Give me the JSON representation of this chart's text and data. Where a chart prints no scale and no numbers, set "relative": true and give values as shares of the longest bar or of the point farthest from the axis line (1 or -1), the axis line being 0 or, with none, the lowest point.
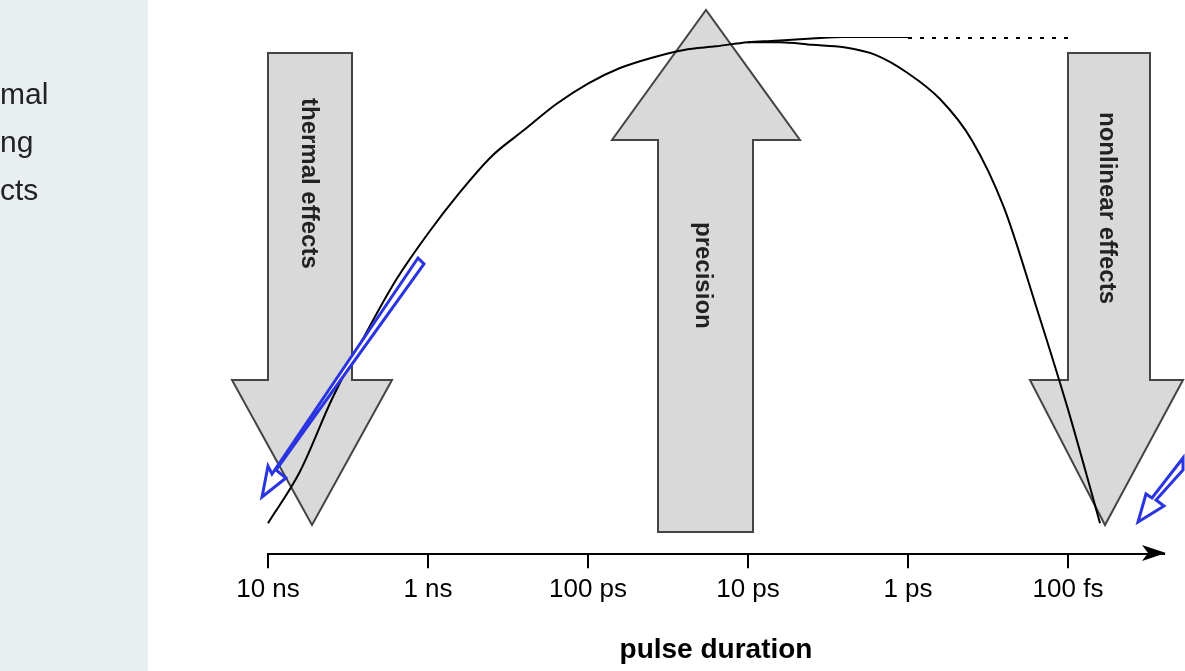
{
  "chart_data": {
    "type": "line",
    "relative": true,
    "xlabel": "pulse duration",
    "categories": [
      "10 ns",
      null,
      null,
      null,
      null,
      "1 ns",
      null,
      null,
      null,
      null,
      "100 ps",
      null,
      null,
      null,
      null,
      "10 ps",
      null,
      null,
      null,
      null,
      "1 ps",
      null,
      null,
      null,
      null,
      "100 fs",
      null,
      null,
      null
    ],
    "series": [
      {
        "color": "#000000",
        "line_style": "solid",
        "values": [
          0.06,
          0.16,
          0.3,
          0.42,
          0.53,
          0.62,
          0.7,
          0.77,
          0.82,
          0.87,
          0.91,
          0.94,
          0.96,
          0.975,
          0.982,
          0.99,
          0.993,
          0.997,
          1.0,
          1.0,
          1.0,
          null,
          null,
          null,
          null,
          null,
          null,
          null,
          null
        ]
      },
      {
        "color": "#000000",
        "line_style": "dotted",
        "values": [
          null,
          null,
          null,
          null,
          null,
          null,
          null,
          null,
          null,
          null,
          null,
          null,
          null,
          null,
          null,
          null,
          null,
          null,
          null,
          null,
          1.0,
          1.0,
          1.0,
          1.0,
          1.0,
          1.0,
          null,
          null,
          null
        ]
      },
      {
        "color": "#000000",
        "line_style": "solid",
        "values": [
          null,
          null,
          null,
          null,
          null,
          null,
          null,
          null,
          null,
          null,
          null,
          null,
          null,
          null,
          null,
          0.99,
          0.99,
          0.985,
          0.98,
          0.965,
          0.93,
          0.88,
          0.8,
          0.67,
          0.48,
          0.28,
          0.06,
          null,
          null
        ]
      }
    ],
    "annotations": [
      "thermal effects",
      "precision",
      "nonlinear effects",
      "mal\nng\ncts"
    ],
    "grid": false,
    "legend": false
  }
}
